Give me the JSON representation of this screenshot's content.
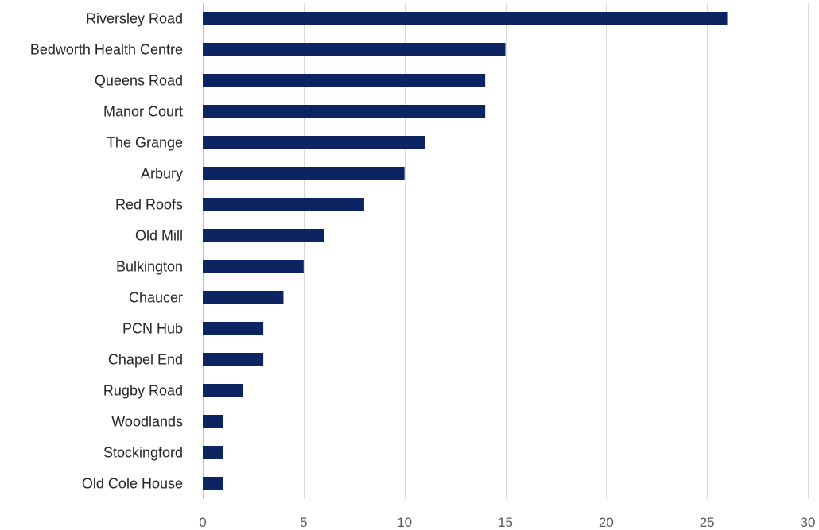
{
  "chart_data": {
    "type": "bar",
    "orientation": "horizontal",
    "title": "",
    "xlabel": "",
    "ylabel": "",
    "categories": [
      "Riversley Road",
      "Bedworth Health Centre",
      "Queens Road",
      "Manor Court",
      "The Grange",
      "Arbury",
      "Red Roofs",
      "Old Mill",
      "Bulkington",
      "Chaucer",
      "PCN Hub",
      "Chapel End",
      "Rugby Road",
      "Woodlands",
      "Stockingford",
      "Old Cole House"
    ],
    "values": [
      26,
      15,
      14,
      14,
      11,
      10,
      8,
      6,
      5,
      4,
      3,
      3,
      2,
      1,
      1,
      1
    ],
    "xlim": [
      0,
      30
    ],
    "xticks": [
      0,
      5,
      10,
      15,
      20,
      25,
      30
    ],
    "grid": "vertical",
    "legend": "none",
    "colors": {
      "bar": "#0c2461",
      "grid": "#d9d9d9",
      "category_text": "#262626",
      "tick_text": "#595959"
    }
  }
}
